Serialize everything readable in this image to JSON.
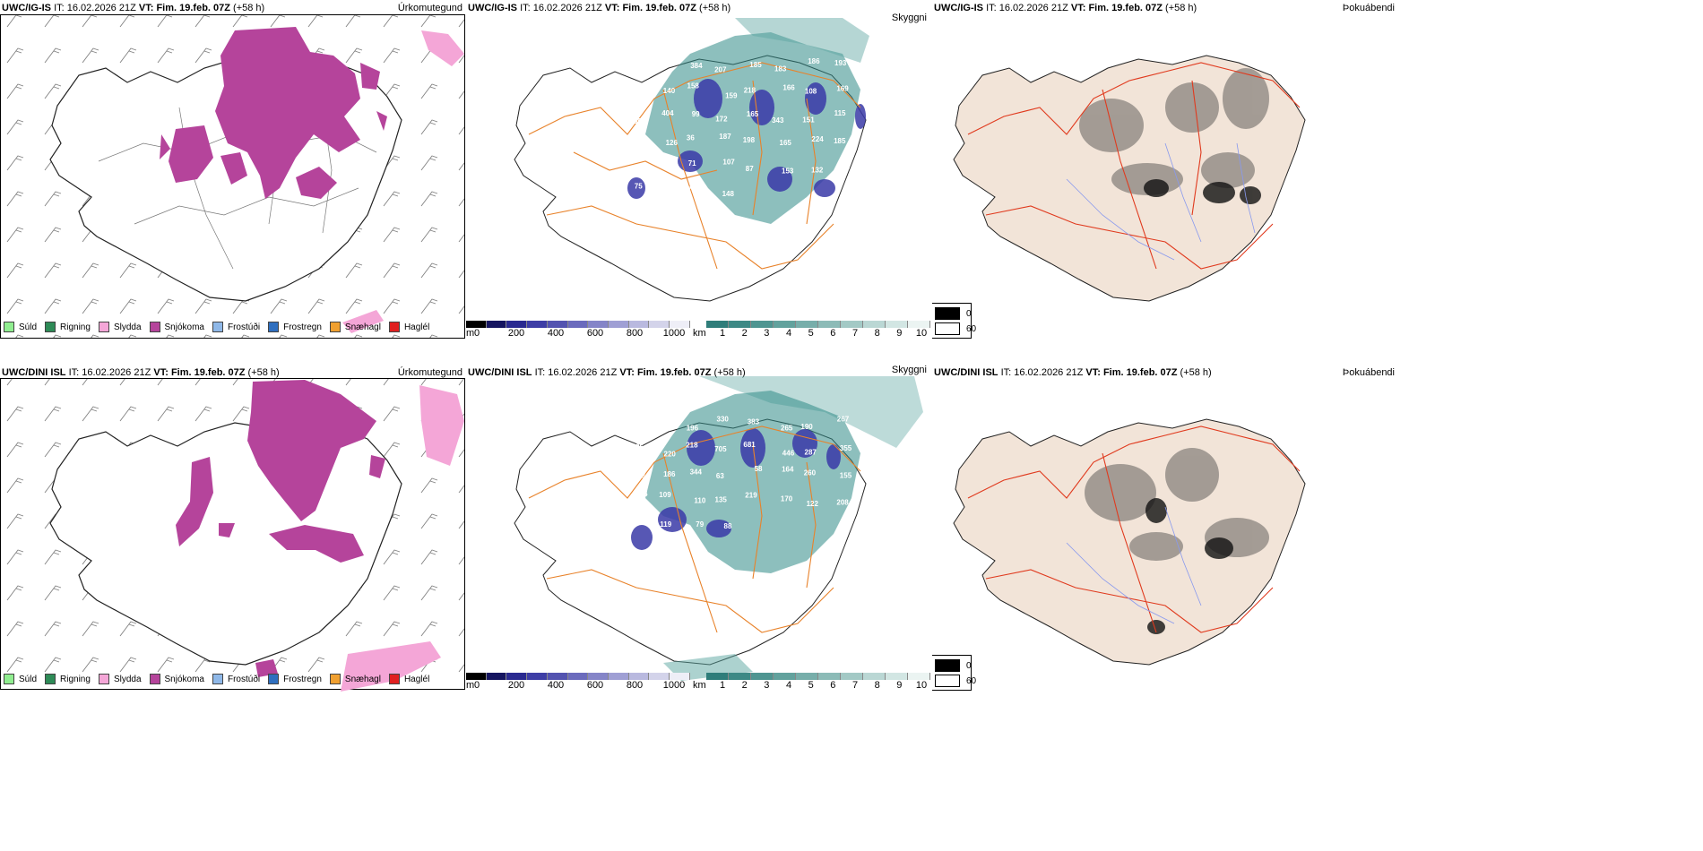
{
  "rows": [
    {
      "model": "UWC/IG-IS",
      "it_label": "IT:",
      "it_value": "16.02.2026 21Z",
      "vt_label": "VT:",
      "vt_value": "Fim. 19.feb. 07Z",
      "lead": "(+58 h)",
      "vis_labels": [
        "226",
        "598",
        "384",
        "207",
        "185",
        "183",
        "186",
        "193",
        "613",
        "140",
        "158",
        "159",
        "218",
        "166",
        "108",
        "169",
        "309",
        "404",
        "99",
        "172",
        "165",
        "343",
        "151",
        "115",
        "70",
        "126",
        "36",
        "187",
        "198",
        "165",
        "224",
        "185",
        "238",
        "210",
        "71",
        "107",
        "87",
        "153",
        "132",
        "164",
        "75",
        "931",
        "74",
        "148"
      ]
    },
    {
      "model": "UWC/DINI ISL",
      "it_label": "IT:",
      "it_value": "16.02.2026 21Z",
      "vt_label": "VT:",
      "vt_value": "Fim. 19.feb. 07Z",
      "lead": "(+58 h)",
      "vis_labels": [
        "820",
        "195",
        "196",
        "330",
        "383",
        "265",
        "190",
        "267",
        "135",
        "220",
        "218",
        "705",
        "681",
        "446",
        "287",
        "355",
        "118",
        "186",
        "344",
        "63",
        "58",
        "164",
        "260",
        "155",
        "136",
        "109",
        "110",
        "135",
        "219",
        "170",
        "122",
        "208",
        "312",
        "119",
        "79",
        "88"
      ]
    }
  ],
  "panel_titles": {
    "precip_type": "Úrkomutegund",
    "visibility": "Skyggni",
    "fog": "Þokuábendi"
  },
  "precip_legend": [
    {
      "label": "Súld",
      "color": "#90ee90"
    },
    {
      "label": "Rigning",
      "color": "#2e8b57"
    },
    {
      "label": "Slydda",
      "color": "#f4a6d7"
    },
    {
      "label": "Snjókoma",
      "color": "#b5449b"
    },
    {
      "label": "Frostúði",
      "color": "#8fb8e8"
    },
    {
      "label": "Frostregn",
      "color": "#2f6fbf"
    },
    {
      "label": "Snæhagl",
      "color": "#f0a030"
    },
    {
      "label": "Haglél",
      "color": "#e02020"
    }
  ],
  "height_bar": {
    "unit": "m",
    "ticks": [
      "0",
      "200",
      "400",
      "600",
      "800",
      "1000"
    ],
    "colors": [
      "#000000",
      "#151560",
      "#2a2a90",
      "#3e3ea6",
      "#5353b0",
      "#6b6bbd",
      "#8585c8",
      "#9f9fd4",
      "#b9b9df",
      "#d3d3ea",
      "#eeeef7"
    ]
  },
  "vis_bar": {
    "unit": "km",
    "ticks": [
      "1",
      "2",
      "3",
      "4",
      "5",
      "6",
      "7",
      "8",
      "9",
      "10"
    ],
    "colors": [
      "#2f7d7a",
      "#3d8985",
      "#4f9591",
      "#62a29d",
      "#77aeaa",
      "#8cbbb7",
      "#a3c9c5",
      "#bad7d4",
      "#d2e6e3",
      "#ebf4f2"
    ]
  },
  "fog_legend": {
    "high": "0",
    "low": "60"
  },
  "colors": {
    "snow": "#b5449b",
    "sleet": "#f4a6d7",
    "rain": "#2e8b57",
    "road_orange": "#e8822a",
    "road_red": "#e03a1e",
    "land_fog": "#f2e4d8",
    "teal": "#2f8a86",
    "blue": "#3a3aa8",
    "river": "#8899ee"
  }
}
